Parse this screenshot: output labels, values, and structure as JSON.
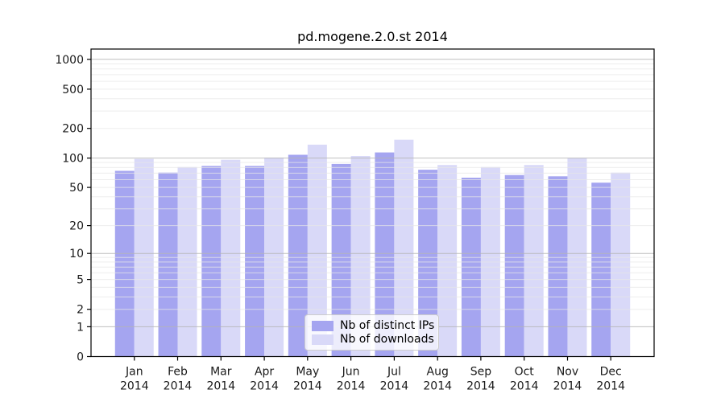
{
  "figure": {
    "background": "#ffffff"
  },
  "chart_data": {
    "type": "bar",
    "title": "pd.mogene.2.0.st 2014",
    "categories": [
      "Jan",
      "Feb",
      "Mar",
      "Apr",
      "May",
      "Jun",
      "Jul",
      "Aug",
      "Sep",
      "Oct",
      "Nov",
      "Dec"
    ],
    "year": "2014",
    "series": [
      {
        "name": "Nb of distinct IPs",
        "color": "#a5a5f0",
        "values": [
          74,
          71,
          83,
          83,
          108,
          87,
          114,
          76,
          63,
          67,
          65,
          56
        ]
      },
      {
        "name": "Nb of downloads",
        "color": "#d9d9f8",
        "values": [
          98,
          81,
          96,
          101,
          137,
          105,
          154,
          85,
          81,
          85,
          100,
          71
        ]
      }
    ],
    "xlabel": "",
    "ylabel": "",
    "y_scale": "log10(1+y)",
    "y_ticks": [
      0,
      1,
      2,
      5,
      10,
      20,
      50,
      100,
      200,
      500,
      1000
    ],
    "ylim": [
      0,
      1270
    ],
    "grid": {
      "enabled": true,
      "major_values": [
        1,
        10,
        100,
        1000
      ],
      "major_color": "#b5b5b5",
      "minor_color": "#e7e7e7"
    },
    "legend_position": "lower center",
    "axis_color": "#000000",
    "tick_label_color": "#1a1a1a"
  }
}
